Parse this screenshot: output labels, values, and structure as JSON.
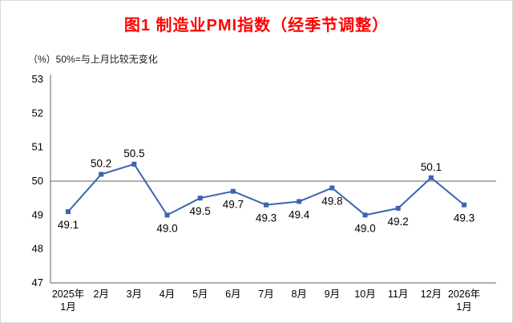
{
  "header": {
    "title": "图1  制造业PMI指数（经季节调整）",
    "note": "（%）50%=与上月比较无变化"
  },
  "colors": {
    "title": "#ff0000",
    "line": "#3a64b0",
    "axis": "#7f7f7f",
    "reference_line": "#7f7f7f",
    "label_text": "#000000"
  },
  "chart_data": {
    "type": "line",
    "title": "图1  制造业PMI指数（经季节调整）",
    "subtitle": "（%）50%=与上月比较无变化",
    "xlabel": "",
    "ylabel": "%",
    "categories": [
      "2025年\n1月",
      "2月",
      "3月",
      "4月",
      "5月",
      "6月",
      "7月",
      "8月",
      "9月",
      "10月",
      "11月",
      "12月",
      "2026年\n1月"
    ],
    "values": [
      49.1,
      50.2,
      50.5,
      49.0,
      49.5,
      49.7,
      49.3,
      49.4,
      49.8,
      49.0,
      49.2,
      50.1,
      49.3
    ],
    "data_labels": [
      "49.1",
      "50.2",
      "50.5",
      "49.0",
      "49.5",
      "49.7",
      "49.3",
      "49.4",
      "49.8",
      "49.0",
      "49.2",
      "50.1",
      "49.3"
    ],
    "ylim": [
      47,
      53
    ],
    "ytick_step": 1,
    "yticks": [
      "47",
      "48",
      "49",
      "50",
      "51",
      "52",
      "53"
    ],
    "reference_line": 50,
    "marker": "square",
    "grid": false,
    "legend_position": "none"
  }
}
